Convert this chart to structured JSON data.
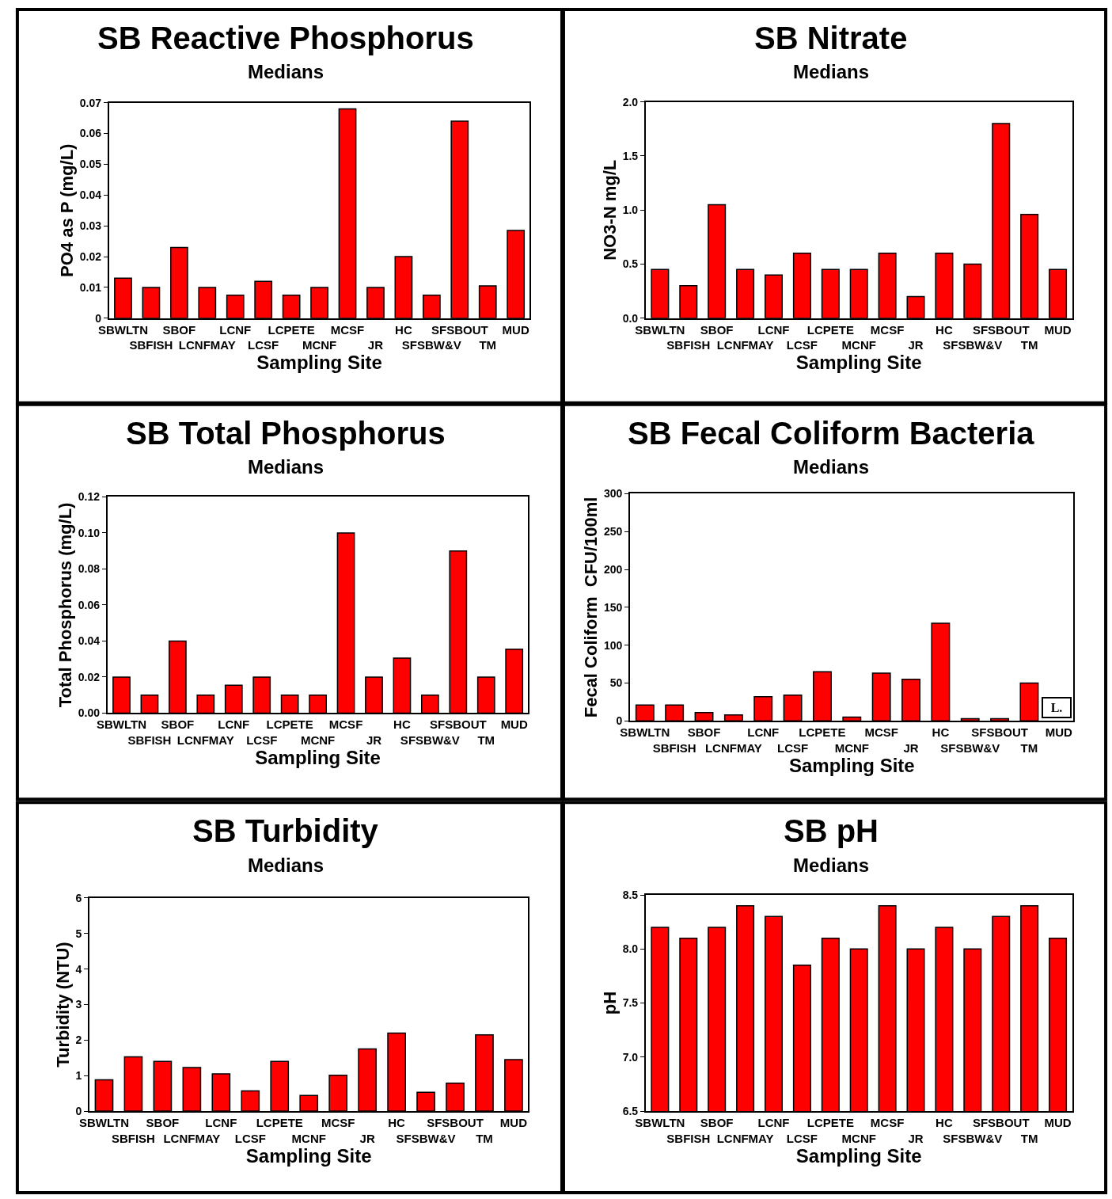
{
  "chart_data": [
    {
      "type": "bar",
      "title": "SB Reactive Phosphorus",
      "subtitle": "Medians",
      "xlabel": "Sampling Site",
      "ylabel": "PO4 as P (mg/L)",
      "categories": [
        "SBWLTN",
        "SBFISH",
        "SBOF",
        "LCNFMAY",
        "LCNF",
        "LCSF",
        "LCPETE",
        "MCNF",
        "MCSF",
        "JR",
        "HC",
        "SFSBW&V",
        "SFSBOUT",
        "TM",
        "MUD"
      ],
      "color": "#ff0000",
      "values": [
        0.013,
        0.01,
        0.023,
        0.01,
        0.0075,
        0.012,
        0.0075,
        0.01,
        0.068,
        0.01,
        0.02,
        0.0075,
        0.064,
        0.0105,
        0.0285
      ],
      "ylim": [
        0,
        0.07
      ],
      "yticks": [
        0,
        0.01,
        0.02,
        0.03,
        0.04,
        0.05,
        0.06,
        0.07
      ]
    },
    {
      "type": "bar",
      "title": "SB Nitrate",
      "subtitle": "Medians",
      "xlabel": "Sampling Site",
      "ylabel": "NO3-N mg/L",
      "categories": [
        "SBWLTN",
        "SBFISH",
        "SBOF",
        "LCNFMAY",
        "LCNF",
        "LCSF",
        "LCPETE",
        "MCNF",
        "MCSF",
        "JR",
        "HC",
        "SFSBW&V",
        "SFSBOUT",
        "TM",
        "MUD"
      ],
      "color": "#ff0000",
      "values": [
        0.45,
        0.3,
        1.05,
        0.45,
        0.4,
        0.6,
        0.45,
        0.45,
        0.6,
        0.2,
        0.6,
        0.5,
        1.8,
        0.96,
        0.45
      ],
      "ylim": [
        0,
        2.0
      ],
      "yticks": [
        {
          "value": 0,
          "label": "0.0"
        },
        {
          "value": 0.5,
          "label": "0.5"
        },
        {
          "value": 1,
          "label": "1.0"
        },
        {
          "value": 1.5,
          "label": "1.5"
        },
        {
          "value": 2,
          "label": "2.0"
        }
      ]
    },
    {
      "type": "bar",
      "title": "SB Total Phosphorus",
      "subtitle": "Medians",
      "xlabel": "Sampling Site",
      "ylabel": "Total Phosphorus (mg/L)",
      "categories": [
        "SBWLTN",
        "SBFISH",
        "SBOF",
        "LCNFMAY",
        "LCNF",
        "LCSF",
        "LCPETE",
        "MCNF",
        "MCSF",
        "JR",
        "HC",
        "SFSBW&V",
        "SFSBOUT",
        "TM",
        "MUD"
      ],
      "color": "#ff0000",
      "values": [
        0.02,
        0.01,
        0.04,
        0.01,
        0.0155,
        0.02,
        0.01,
        0.01,
        0.1,
        0.02,
        0.0305,
        0.01,
        0.09,
        0.02,
        0.0355
      ],
      "ylim": [
        0,
        0.12
      ],
      "yticks": [
        {
          "value": 0,
          "label": "0.00"
        },
        {
          "value": 0.02,
          "label": "0.02"
        },
        {
          "value": 0.04,
          "label": "0.04"
        },
        {
          "value": 0.06,
          "label": "0.06"
        },
        {
          "value": 0.08,
          "label": "0.08"
        },
        {
          "value": 0.1,
          "label": "0.10"
        },
        {
          "value": 0.12,
          "label": "0.12"
        }
      ]
    },
    {
      "type": "bar",
      "title": "SB Fecal Coliform Bacteria",
      "subtitle": "Medians",
      "xlabel": "Sampling Site",
      "ylabel": "Fecal Coliform  CFU/100ml",
      "categories": [
        "SBWLTN",
        "SBFISH",
        "SBOF",
        "LCNFMAY",
        "LCNF",
        "LCSF",
        "LCPETE",
        "MCNF",
        "MCSF",
        "JR",
        "HC",
        "SFSBW&V",
        "SFSBOUT",
        "TM",
        "MUD"
      ],
      "color": "#ff0000",
      "values": [
        21,
        21,
        11,
        8,
        32,
        34,
        65,
        5,
        63,
        55,
        129,
        3,
        3,
        50,
        null
      ],
      "ylim": [
        0,
        300
      ],
      "yticks": [
        0,
        50,
        100,
        150,
        200,
        250,
        300
      ],
      "annotations": [
        "L."
      ]
    },
    {
      "type": "bar",
      "title": "SB Turbidity",
      "subtitle": "Medians",
      "xlabel": "Sampling Site",
      "ylabel": "Turbidity (NTU)",
      "categories": [
        "SBWLTN",
        "SBFISH",
        "SBOF",
        "LCNFMAY",
        "LCNF",
        "LCSF",
        "LCPETE",
        "MCNF",
        "MCSF",
        "JR",
        "HC",
        "SFSBW&V",
        "SFSBOUT",
        "TM",
        "MUD"
      ],
      "color": "#ff0000",
      "values": [
        0.88,
        1.53,
        1.4,
        1.23,
        1.05,
        0.57,
        1.4,
        0.44,
        1.01,
        1.75,
        2.2,
        0.53,
        0.79,
        2.15,
        1.45
      ],
      "ylim": [
        0,
        6
      ],
      "yticks": [
        0,
        1,
        2,
        3,
        4,
        5,
        6
      ]
    },
    {
      "type": "bar",
      "title": "SB pH",
      "subtitle": "Medians",
      "xlabel": "Sampling Site",
      "ylabel": "pH",
      "categories": [
        "SBWLTN",
        "SBFISH",
        "SBOF",
        "LCNFMAY",
        "LCNF",
        "LCSF",
        "LCPETE",
        "MCNF",
        "MCSF",
        "JR",
        "HC",
        "SFSBW&V",
        "SFSBOUT",
        "TM",
        "MUD"
      ],
      "color": "#ff0000",
      "values": [
        8.2,
        8.1,
        8.2,
        8.4,
        8.3,
        7.85,
        8.1,
        8.0,
        8.4,
        8.0,
        8.2,
        8.0,
        8.3,
        8.4,
        8.1
      ],
      "ylim": [
        6.5,
        8.5
      ],
      "yticks": [
        {
          "value": 6.5,
          "label": "6.5"
        },
        {
          "value": 7,
          "label": "7.0"
        },
        {
          "value": 7.5,
          "label": "7.5"
        },
        {
          "value": 8,
          "label": "8.0"
        },
        {
          "value": 8.5,
          "label": "8.5"
        }
      ]
    }
  ]
}
